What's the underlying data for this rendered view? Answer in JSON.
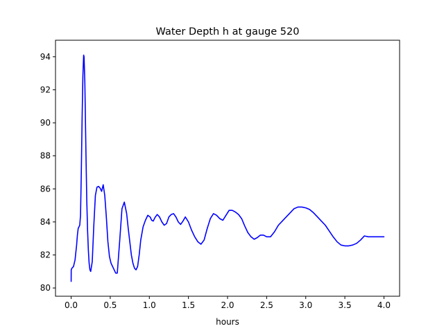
{
  "chart_data": {
    "type": "line",
    "title": "Water Depth h at gauge 520",
    "xlabel": "hours",
    "ylabel": "",
    "xlim": [
      -0.2,
      4.2
    ],
    "ylim": [
      79.5,
      95.0
    ],
    "xticks": [
      0.0,
      0.5,
      1.0,
      1.5,
      2.0,
      2.5,
      3.0,
      3.5,
      4.0
    ],
    "xtick_labels": [
      "0.0",
      "0.5",
      "1.0",
      "1.5",
      "2.0",
      "2.5",
      "3.0",
      "3.5",
      "4.0"
    ],
    "yticks": [
      80,
      82,
      84,
      86,
      88,
      90,
      92,
      94
    ],
    "ytick_labels": [
      "80",
      "82",
      "84",
      "86",
      "88",
      "90",
      "92",
      "94"
    ],
    "grid": false,
    "legend": "none",
    "series": [
      {
        "color": "#0000ff",
        "x": [
          0.0,
          0.001,
          0.01,
          0.03,
          0.05,
          0.07,
          0.08,
          0.09,
          0.1,
          0.11,
          0.12,
          0.13,
          0.14,
          0.15,
          0.16,
          0.165,
          0.175,
          0.185,
          0.19,
          0.2,
          0.21,
          0.22,
          0.23,
          0.24,
          0.25,
          0.27,
          0.29,
          0.31,
          0.33,
          0.35,
          0.37,
          0.39,
          0.41,
          0.43,
          0.45,
          0.47,
          0.49,
          0.51,
          0.53,
          0.55,
          0.57,
          0.59,
          0.62,
          0.65,
          0.68,
          0.71,
          0.73,
          0.75,
          0.77,
          0.79,
          0.81,
          0.83,
          0.85,
          0.87,
          0.89,
          0.92,
          0.95,
          0.98,
          1.01,
          1.03,
          1.05,
          1.07,
          1.1,
          1.13,
          1.16,
          1.19,
          1.22,
          1.25,
          1.28,
          1.31,
          1.34,
          1.37,
          1.4,
          1.43,
          1.46,
          1.5,
          1.54,
          1.58,
          1.62,
          1.66,
          1.7,
          1.74,
          1.78,
          1.82,
          1.86,
          1.9,
          1.94,
          1.98,
          2.02,
          2.06,
          2.1,
          2.14,
          2.18,
          2.22,
          2.26,
          2.3,
          2.34,
          2.38,
          2.42,
          2.46,
          2.5,
          2.55,
          2.6,
          2.65,
          2.7,
          2.75,
          2.8,
          2.85,
          2.9,
          2.95,
          3.0,
          3.05,
          3.1,
          3.15,
          3.2,
          3.25,
          3.3,
          3.35,
          3.4,
          3.45,
          3.5,
          3.55,
          3.6,
          3.65,
          3.7,
          3.75,
          3.8,
          3.85,
          3.9,
          3.95,
          4.0
        ],
        "values": [
          80.4,
          81.1,
          81.2,
          81.3,
          81.7,
          82.6,
          83.2,
          83.6,
          83.7,
          83.8,
          84.4,
          87.0,
          90.2,
          92.8,
          94.1,
          94.0,
          92.5,
          89.5,
          88.0,
          85.3,
          83.5,
          82.3,
          81.5,
          81.1,
          81.0,
          81.6,
          83.8,
          85.6,
          86.1,
          86.15,
          86.05,
          85.85,
          86.25,
          85.6,
          84.3,
          82.8,
          81.9,
          81.5,
          81.3,
          81.1,
          80.9,
          80.9,
          82.8,
          84.8,
          85.2,
          84.5,
          83.6,
          82.8,
          82.0,
          81.5,
          81.2,
          81.1,
          81.3,
          82.0,
          82.9,
          83.7,
          84.1,
          84.4,
          84.3,
          84.1,
          84.05,
          84.25,
          84.45,
          84.3,
          84.0,
          83.8,
          83.9,
          84.3,
          84.45,
          84.5,
          84.3,
          84.0,
          83.85,
          84.05,
          84.3,
          84.0,
          83.5,
          83.1,
          82.8,
          82.65,
          82.9,
          83.6,
          84.2,
          84.5,
          84.4,
          84.2,
          84.1,
          84.4,
          84.7,
          84.7,
          84.6,
          84.45,
          84.2,
          83.75,
          83.35,
          83.1,
          82.95,
          83.05,
          83.2,
          83.2,
          83.1,
          83.1,
          83.4,
          83.8,
          84.05,
          84.3,
          84.55,
          84.8,
          84.9,
          84.9,
          84.85,
          84.75,
          84.55,
          84.3,
          84.05,
          83.8,
          83.45,
          83.1,
          82.8,
          82.6,
          82.55,
          82.55,
          82.6,
          82.7,
          82.9,
          83.15,
          83.1,
          83.1,
          83.1,
          83.1,
          83.1
        ]
      }
    ]
  }
}
